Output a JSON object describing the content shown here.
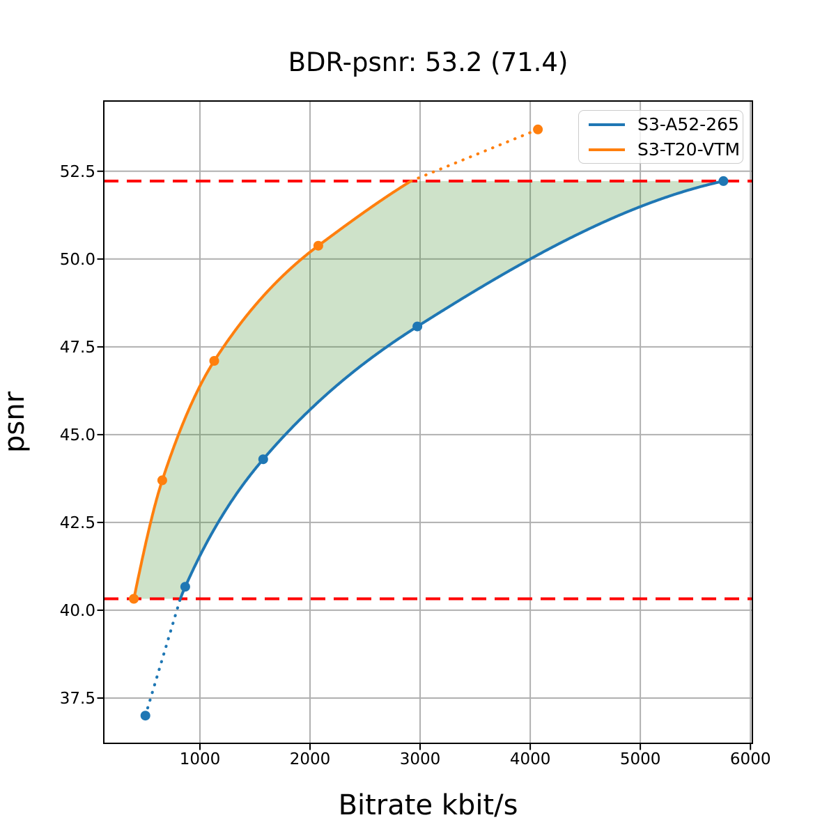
{
  "chart_data": {
    "type": "line",
    "title": "BDR-psnr: 53.2 (71.4)",
    "xlabel": "Bitrate kbit/s",
    "ylabel": "psnr",
    "xlim": [
      127,
      6018
    ],
    "ylim": [
      36.21,
      54.5
    ],
    "xticks": {
      "values": [
        1000,
        2000,
        3000,
        4000,
        5000,
        6000
      ],
      "labels": [
        "1000",
        "2000",
        "3000",
        "4000",
        "5000",
        "6000"
      ]
    },
    "yticks": {
      "values": [
        37.5,
        40.0,
        42.5,
        45.0,
        47.5,
        50.0,
        52.5
      ],
      "labels": [
        "37.5",
        "40.0",
        "42.5",
        "45.0",
        "47.5",
        "50.0",
        "52.5"
      ]
    },
    "grid": true,
    "legend_position": "upper right",
    "series": [
      {
        "name": "S3-A52-265",
        "color": "#1f77b4",
        "points": [
          [
            505,
            37.0
          ],
          [
            867,
            40.67
          ],
          [
            1575,
            44.3
          ],
          [
            2975,
            48.08
          ],
          [
            5755,
            52.22
          ]
        ]
      },
      {
        "name": "S3-T20-VTM",
        "color": "#ff7f0e",
        "points": [
          [
            400,
            40.327
          ],
          [
            658,
            43.7
          ],
          [
            1130,
            47.1
          ],
          [
            2075,
            50.38
          ],
          [
            4070,
            53.69
          ]
        ]
      }
    ],
    "overlap_range": [
      40.327,
      52.22
    ],
    "reference_lines": {
      "color": "#ff0000",
      "style": "dashed",
      "values": [
        40.327,
        52.22
      ]
    },
    "fill_between": {
      "color": "#3b8b27",
      "alpha": 0.25
    },
    "grid_color": "#b0b0b0",
    "text_color": "#000000"
  }
}
